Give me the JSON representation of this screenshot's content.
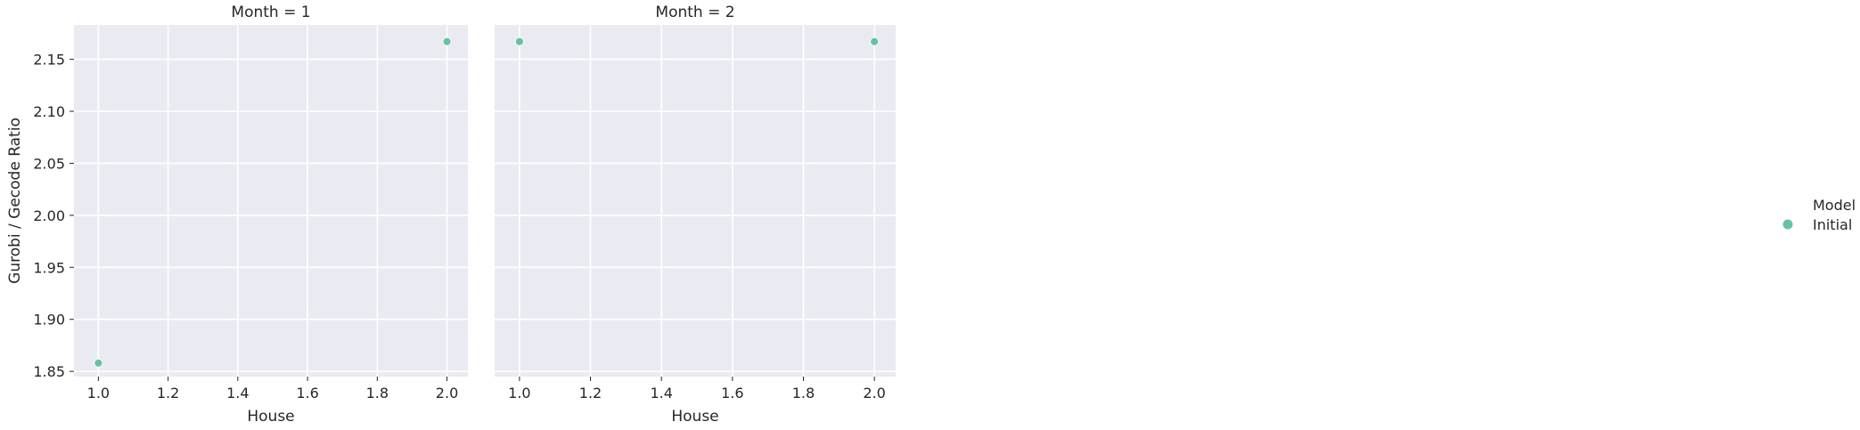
{
  "chart_data": [
    {
      "type": "scatter",
      "title": "Month = 1",
      "xlabel": "House",
      "ylabel": "Gurobi / Gecode Ratio",
      "xlim": [
        0.93,
        2.06
      ],
      "ylim": [
        1.845,
        2.183
      ],
      "xticks": [
        "1.0",
        "1.2",
        "1.4",
        "1.6",
        "1.8",
        "2.0"
      ],
      "yticks": [
        "1.85",
        "1.90",
        "1.95",
        "2.00",
        "2.05",
        "2.10",
        "2.15"
      ],
      "grid": true,
      "series": [
        {
          "name": "Initial",
          "color": "#66c2a5",
          "points": [
            {
              "x": 1.0,
              "y": 1.858
            },
            {
              "x": 2.0,
              "y": 2.167
            }
          ]
        }
      ]
    },
    {
      "type": "scatter",
      "title": "Month = 2",
      "xlabel": "House",
      "ylabel": "",
      "xlim": [
        0.93,
        2.06
      ],
      "ylim": [
        1.845,
        2.183
      ],
      "xticks": [
        "1.0",
        "1.2",
        "1.4",
        "1.6",
        "1.8",
        "2.0"
      ],
      "yticks": [],
      "grid": true,
      "series": [
        {
          "name": "Initial",
          "color": "#66c2a5",
          "points": [
            {
              "x": 1.0,
              "y": 2.167
            },
            {
              "x": 2.0,
              "y": 2.167
            }
          ]
        }
      ]
    }
  ],
  "legend": {
    "title": "Model",
    "placement": "right",
    "entries": [
      {
        "label": "Initial",
        "color": "#66c2a5"
      }
    ]
  }
}
